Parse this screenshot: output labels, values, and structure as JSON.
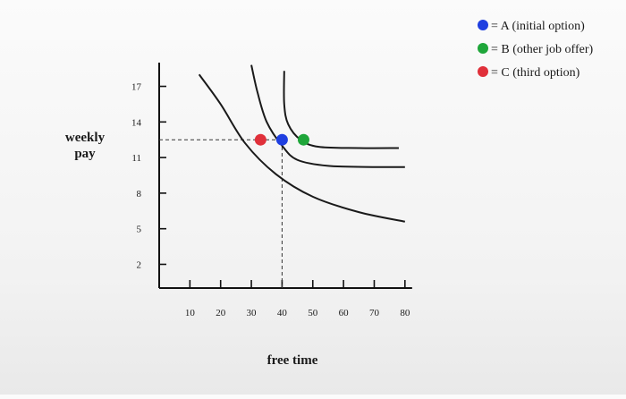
{
  "chart_data": {
    "type": "line",
    "xlabel": "free time",
    "ylabel_lines": [
      "weekly",
      "pay"
    ],
    "x_ticks": [
      10,
      20,
      30,
      40,
      50,
      60,
      70,
      80
    ],
    "y_ticks": [
      2,
      5,
      8,
      11,
      14,
      17
    ],
    "xlim": [
      0,
      85
    ],
    "ylim": [
      0,
      19
    ],
    "grid": false,
    "legend_position": "top-right",
    "series": [
      {
        "points": [
          [
            13,
            18
          ],
          [
            20,
            15.5
          ],
          [
            28,
            12.2
          ],
          [
            38,
            9.6
          ],
          [
            50,
            7.7
          ],
          [
            65,
            6.4
          ],
          [
            80,
            5.6
          ]
        ]
      },
      {
        "points": [
          [
            30,
            18.8
          ],
          [
            32,
            16.5
          ],
          [
            35,
            14
          ],
          [
            40,
            12
          ],
          [
            45,
            10.8
          ],
          [
            55,
            10.3
          ],
          [
            70,
            10.2
          ],
          [
            80,
            10.2
          ]
        ]
      },
      {
        "points": [
          [
            40.7,
            18.3
          ],
          [
            40.7,
            15.5
          ],
          [
            42,
            13.8
          ],
          [
            46,
            12.5
          ],
          [
            52,
            11.9
          ],
          [
            65,
            11.8
          ],
          [
            78,
            11.8
          ]
        ]
      }
    ],
    "points": [
      {
        "label": "A (initial option)",
        "x": 40,
        "y": 12.5,
        "color": "#1f3fe0"
      },
      {
        "label": "B (other job offer)",
        "x": 47,
        "y": 12.5,
        "color": "#1fa63a"
      },
      {
        "label": "C (third option)",
        "x": 33,
        "y": 12.5,
        "color": "#e0303a"
      }
    ],
    "reference_lines": [
      {
        "type": "horizontal",
        "y": 12.5,
        "x_from": 0,
        "x_to": 40,
        "style": "dashed"
      },
      {
        "type": "vertical",
        "x": 40,
        "y_from": 0,
        "y_to": 12.5,
        "style": "dashed"
      }
    ],
    "curve_color": "#1a1a1a"
  },
  "legend": [
    {
      "text": "= A (initial option)",
      "color": "#1f3fe0"
    },
    {
      "text": "= B (other job offer)",
      "color": "#1fa63a"
    },
    {
      "text": "= C (third option)",
      "color": "#e0303a"
    }
  ]
}
